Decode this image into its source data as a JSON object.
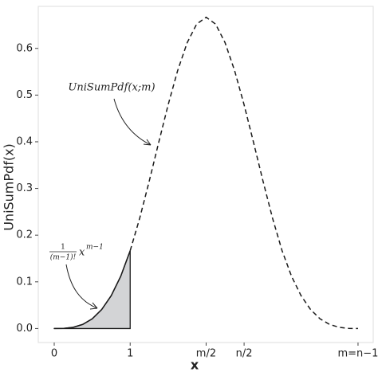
{
  "chart_data": {
    "type": "line",
    "x_label": "x",
    "y_label": "UniSumPdf(x)",
    "xlim": [
      -0.21,
      4.2
    ],
    "ylim": [
      -0.03,
      0.69
    ],
    "xticks": [
      0,
      1,
      {
        "value": 2,
        "label": "m/2"
      },
      {
        "value": 2.5,
        "label": "n/2"
      },
      {
        "value": 4,
        "label": "m=n−1"
      }
    ],
    "yticks": [
      {
        "value": 0,
        "label": "0.0"
      },
      0.1,
      0.2,
      0.3,
      0.4,
      0.5,
      0.6
    ],
    "series": [
      {
        "color": "#1a1a1a",
        "dash": false,
        "fill": "#d3d4d6",
        "x": [
          0,
          0.125,
          0.25,
          0.375,
          0.5,
          0.625,
          0.75,
          0.875,
          1
        ],
        "values": [
          0,
          0.0003,
          0.0026,
          0.0088,
          0.0208,
          0.0407,
          0.0703,
          0.1117,
          0.1667
        ]
      },
      {
        "color": "#1a1a1a",
        "dash": true,
        "x": [
          1,
          1.125,
          1.25,
          1.375,
          1.5,
          1.625,
          1.75,
          1.875,
          2,
          2.125,
          2.25,
          2.375,
          2.5,
          2.625,
          2.75,
          2.875,
          3,
          3.125,
          3.25,
          3.375,
          3.5,
          3.625,
          3.75,
          3.875,
          4
        ],
        "values": [
          0.1667,
          0.236,
          0.3151,
          0.3981,
          0.4792,
          0.5524,
          0.612,
          0.652,
          0.6667,
          0.652,
          0.612,
          0.5524,
          0.4792,
          0.3981,
          0.3151,
          0.236,
          0.1667,
          0.1117,
          0.0703,
          0.0407,
          0.0208,
          0.0088,
          0.0026,
          0.0003,
          0
        ]
      }
    ],
    "annotations": {
      "curve_label": "UniSumPdf(x;m)",
      "formula": {
        "numerator": "1",
        "denominator": "(m−1)!",
        "base": "x",
        "exponent": "m−1"
      }
    }
  }
}
